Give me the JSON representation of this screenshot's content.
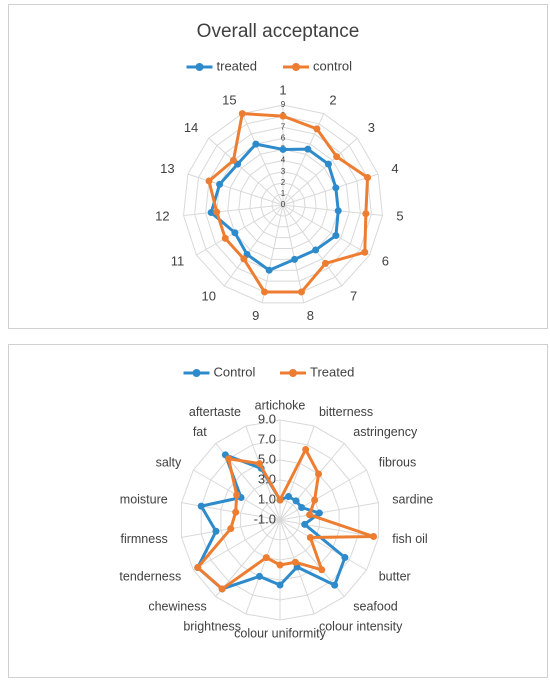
{
  "chart_data": [
    {
      "type": "radar",
      "title": "Overall acceptance",
      "categories": [
        "1",
        "2",
        "3",
        "4",
        "5",
        "6",
        "7",
        "8",
        "9",
        "10",
        "11",
        "12",
        "13",
        "14",
        "15"
      ],
      "ylim": [
        0,
        9
      ],
      "yticks": [
        0,
        1,
        2,
        3,
        4,
        5,
        6,
        7,
        8,
        9
      ],
      "grid": true,
      "legend": "top",
      "series": [
        {
          "name": "treated",
          "color": "#2E8BCB",
          "values": [
            5,
            5.5,
            5.5,
            5,
            5,
            5.5,
            5,
            5,
            6,
            5.5,
            5,
            6.5,
            6,
            5.5,
            6
          ]
        },
        {
          "name": "control",
          "color": "#ED7D31",
          "values": [
            8,
            7.5,
            6.5,
            8,
            7.5,
            8.5,
            6.5,
            8,
            8,
            6,
            6,
            6,
            7,
            6,
            9
          ]
        }
      ]
    },
    {
      "type": "radar",
      "categories": [
        "artichoke",
        "bitterness",
        "astringency",
        "fibrous",
        "sardine",
        "fish oil",
        "butter",
        "seafood",
        "colour intensity",
        "colour uniformity",
        "brightness",
        "chewiness",
        "tenderness",
        "firmness",
        "moisture",
        "salty",
        "fat",
        "aftertaste"
      ],
      "ylim": [
        -1,
        9
      ],
      "yticks": [
        {
          "value": -1,
          "label": "-1.0"
        },
        {
          "value": 1,
          "label": "1.0"
        },
        {
          "value": 3,
          "label": "3.0"
        },
        {
          "value": 5,
          "label": "5.0"
        },
        {
          "value": 7,
          "label": "7.0"
        },
        {
          "value": 9,
          "label": "9.0"
        }
      ],
      "grid": true,
      "legend": "top",
      "series": [
        {
          "name": "Control",
          "color": "#2E8BCB",
          "values": [
            1,
            1.5,
            1.5,
            1.5,
            3,
            1.5,
            6.5,
            7.5,
            4,
            5.5,
            5,
            8,
            8.5,
            5.5,
            7,
            3.5,
            7.5,
            4.5
          ]
        },
        {
          "name": "Treated",
          "color": "#ED7D31",
          "values": [
            1,
            6.5,
            5,
            3,
            2,
            8.5,
            2.5,
            5.5,
            3.5,
            3.5,
            3,
            8,
            8.5,
            4,
            3.5,
            4,
            7,
            5
          ]
        }
      ]
    }
  ]
}
